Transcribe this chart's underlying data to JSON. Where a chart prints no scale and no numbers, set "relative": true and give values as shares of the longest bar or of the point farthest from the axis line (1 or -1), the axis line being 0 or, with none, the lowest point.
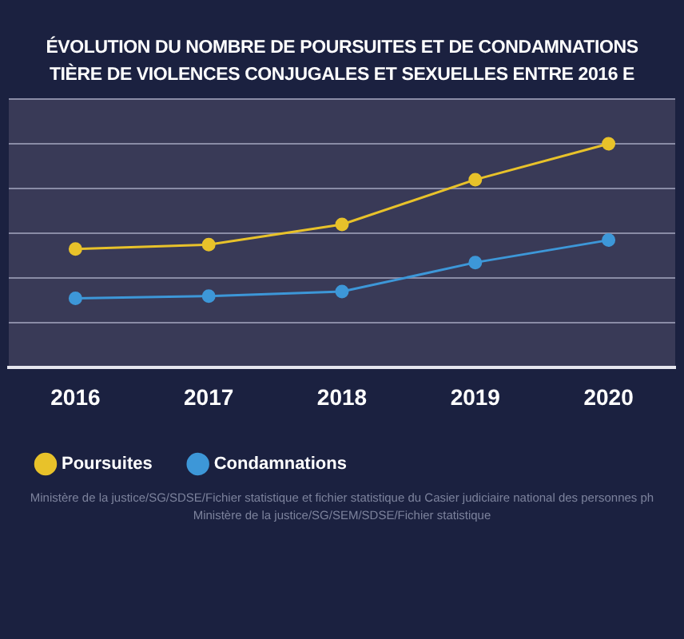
{
  "chart_data": {
    "type": "line",
    "title": "ÉVOLUTION DU NOMBRE DE POURSUITES ET DE CONDAMNATIONS",
    "subtitle": "TIÈRE DE VIOLENCES CONJUGALES ET SEXUELLES ENTRE 2016 E",
    "categories": [
      "2016",
      "2017",
      "2018",
      "2019",
      "2020"
    ],
    "series": [
      {
        "name": "Poursuites",
        "color": "#e8c22a",
        "values": [
          0.53,
          0.55,
          0.64,
          0.84,
          1
        ]
      },
      {
        "name": "Condamnations",
        "color": "#3d97d8",
        "values": [
          0.31,
          0.32,
          0.34,
          0.47,
          0.57
        ]
      }
    ],
    "relative": true,
    "grid": "y",
    "legend": "bottom left",
    "marker": "circle",
    "line_style": "solid",
    "annotations": [
      "Ministère de la justice/SG/SDSE/Fichier statistique et fichier statistique du Casier judiciaire national des personnes ph",
      "Ministère de la justice/SG/SEM/SDSE/Fichier statistique"
    ]
  }
}
